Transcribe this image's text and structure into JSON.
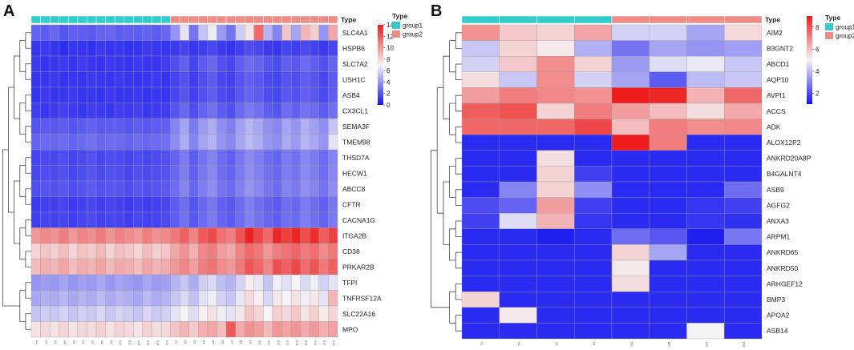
{
  "chart_data": [
    {
      "type": "heatmap",
      "panel": "A",
      "annotation_title": "Type",
      "legend": {
        "title": "Type",
        "entries": [
          {
            "label": "group1",
            "color": "#33cccc"
          },
          {
            "label": "group2",
            "color": "#f08c86"
          }
        ]
      },
      "colorbar": {
        "min": 0,
        "max": 14,
        "ticks": [
          0,
          2,
          4,
          6,
          8,
          10,
          12,
          14
        ],
        "low_color": "#1414f0",
        "mid_color": "#f5f3f5",
        "high_color": "#ee1c1c"
      },
      "n_group1": 15,
      "samples": [
        "N1",
        "N2",
        "N3",
        "N4",
        "N5",
        "N6",
        "N7",
        "N8",
        "N9",
        "N10",
        "N11",
        "N12",
        "N13",
        "N14",
        "N15",
        "D1",
        "D2",
        "D3",
        "D4",
        "D5",
        "D6",
        "D7",
        "D8",
        "D9",
        "D10",
        "D11",
        "D12",
        "D13",
        "D14",
        "D15",
        "D16",
        "D17",
        "D18"
      ],
      "genes": [
        "SLC4A1",
        "HSPB6",
        "SLC7A2",
        "USH1C",
        "ASB4",
        "CX3CL1",
        "SEMA3F",
        "TMEM98",
        "THSD7A",
        "HECW1",
        "ABCC8",
        "CFTR",
        "CACNA1G",
        "ITGA2B",
        "CD38",
        "PRKAR2B",
        "TFPI",
        "TNFRSF12A",
        "SLC22A16",
        "MPO"
      ],
      "values": [
        [
          2.5,
          2.2,
          2.6,
          2.0,
          2.4,
          2.3,
          2.1,
          2.5,
          2.6,
          2.2,
          2.4,
          2.3,
          2.5,
          2.2,
          2.6,
          4.0,
          6.5,
          3.0,
          5.5,
          6.8,
          4.2,
          3.0,
          5.8,
          7.5,
          11.5,
          5.0,
          3.5,
          8.5,
          4.5,
          9.0,
          8.2,
          4.0,
          9.5
        ],
        [
          1.0,
          1.2,
          1.0,
          0.8,
          1.1,
          1.0,
          0.9,
          1.2,
          1.0,
          1.1,
          0.9,
          1.0,
          1.2,
          1.1,
          1.0,
          1.2,
          1.5,
          1.1,
          1.3,
          1.6,
          1.2,
          1.0,
          1.4,
          1.8,
          1.6,
          1.2,
          1.1,
          1.5,
          1.3,
          1.7,
          1.4,
          1.2,
          1.6
        ],
        [
          1.2,
          1.0,
          1.1,
          1.2,
          1.0,
          1.3,
          1.1,
          1.0,
          1.2,
          1.1,
          1.0,
          1.2,
          1.1,
          1.0,
          1.3,
          1.8,
          2.4,
          1.5,
          2.2,
          2.6,
          1.9,
          1.6,
          2.3,
          2.8,
          2.5,
          2.0,
          1.7,
          2.4,
          2.1,
          2.7,
          2.3,
          1.9,
          2.5
        ],
        [
          1.0,
          1.1,
          1.2,
          1.0,
          1.1,
          1.0,
          1.2,
          1.1,
          1.0,
          1.2,
          1.1,
          1.0,
          1.1,
          1.2,
          1.0,
          1.5,
          1.9,
          1.3,
          1.8,
          2.2,
          1.6,
          1.4,
          2.0,
          2.4,
          2.1,
          1.7,
          1.5,
          2.0,
          1.8,
          2.3,
          2.0,
          1.6,
          2.2
        ],
        [
          1.0,
          1.2,
          1.0,
          1.1,
          1.2,
          1.0,
          1.1,
          1.0,
          1.2,
          1.0,
          1.1,
          1.2,
          1.0,
          1.1,
          1.0,
          1.6,
          2.0,
          1.4,
          1.9,
          2.3,
          1.7,
          1.5,
          2.1,
          2.5,
          2.2,
          1.8,
          1.6,
          2.1,
          1.9,
          2.4,
          2.1,
          1.7,
          2.3
        ],
        [
          1.3,
          1.1,
          1.2,
          1.4,
          1.2,
          1.1,
          1.3,
          1.2,
          1.1,
          1.3,
          1.2,
          1.4,
          1.1,
          1.2,
          1.3,
          2.0,
          2.6,
          1.8,
          2.5,
          2.9,
          2.2,
          1.9,
          2.7,
          3.2,
          2.9,
          2.3,
          2.0,
          2.8,
          2.4,
          3.0,
          2.7,
          2.2,
          2.9
        ],
        [
          2.0,
          2.2,
          2.1,
          2.3,
          2.0,
          2.2,
          2.4,
          2.1,
          2.3,
          2.2,
          2.0,
          2.3,
          2.1,
          2.2,
          2.4,
          3.5,
          4.5,
          3.2,
          4.2,
          4.8,
          3.8,
          3.4,
          4.4,
          5.0,
          4.6,
          3.9,
          3.6,
          4.5,
          4.0,
          4.9,
          4.4,
          3.8,
          5.5
        ],
        [
          2.5,
          2.7,
          2.6,
          2.8,
          2.5,
          2.7,
          2.9,
          2.6,
          2.8,
          2.7,
          2.5,
          2.8,
          2.6,
          2.7,
          2.9,
          3.8,
          4.8,
          3.5,
          4.5,
          5.0,
          4.0,
          3.6,
          4.6,
          5.2,
          4.8,
          4.1,
          3.8,
          4.7,
          4.2,
          5.1,
          4.6,
          4.0,
          6.5
        ],
        [
          1.5,
          1.7,
          1.6,
          1.8,
          1.5,
          1.7,
          1.9,
          1.6,
          1.8,
          1.7,
          1.5,
          1.8,
          1.6,
          1.7,
          1.9,
          2.5,
          3.2,
          2.3,
          3.0,
          3.5,
          2.7,
          2.4,
          3.1,
          3.7,
          3.3,
          2.8,
          2.5,
          3.2,
          2.9,
          3.6,
          3.2,
          2.7,
          3.5
        ],
        [
          1.6,
          1.8,
          1.7,
          1.9,
          1.6,
          1.8,
          2.0,
          1.7,
          1.9,
          1.8,
          1.6,
          1.9,
          1.7,
          1.8,
          2.0,
          2.6,
          3.3,
          2.4,
          3.1,
          3.6,
          2.8,
          2.5,
          3.2,
          3.8,
          3.4,
          2.9,
          2.6,
          3.3,
          3.0,
          3.7,
          3.3,
          2.8,
          3.6
        ],
        [
          1.8,
          2.0,
          1.9,
          2.1,
          1.8,
          2.0,
          2.2,
          1.9,
          2.1,
          2.0,
          1.8,
          2.1,
          1.9,
          2.0,
          2.2,
          2.8,
          3.5,
          2.6,
          3.3,
          3.8,
          3.0,
          2.7,
          3.4,
          4.0,
          3.6,
          3.1,
          2.8,
          3.5,
          3.2,
          3.9,
          3.5,
          3.0,
          3.8
        ],
        [
          1.2,
          1.4,
          1.3,
          1.5,
          1.2,
          1.4,
          1.6,
          1.3,
          1.5,
          1.4,
          1.2,
          1.5,
          1.3,
          1.4,
          1.6,
          2.2,
          2.8,
          2.0,
          2.6,
          3.1,
          2.4,
          2.1,
          2.7,
          3.3,
          2.9,
          2.5,
          2.2,
          2.8,
          2.6,
          3.2,
          2.8,
          2.4,
          3.1
        ],
        [
          1.3,
          1.5,
          1.4,
          1.6,
          1.3,
          1.5,
          1.7,
          1.4,
          1.6,
          1.5,
          1.3,
          1.6,
          1.4,
          1.5,
          1.7,
          2.3,
          2.9,
          2.1,
          2.7,
          3.2,
          2.5,
          2.2,
          2.8,
          3.4,
          3.0,
          2.6,
          2.3,
          2.9,
          2.7,
          3.3,
          2.9,
          2.5,
          3.2
        ],
        [
          10.0,
          10.5,
          10.2,
          10.8,
          10.0,
          10.6,
          10.3,
          10.9,
          10.1,
          10.7,
          10.4,
          10.0,
          10.8,
          10.2,
          10.5,
          11.0,
          11.8,
          10.6,
          12.0,
          12.5,
          11.3,
          10.8,
          12.2,
          13.8,
          12.6,
          11.5,
          13.6,
          12.9,
          13.7,
          12.4,
          13.5,
          11.9,
          12.8
        ],
        [
          8.0,
          8.5,
          8.2,
          8.8,
          8.0,
          8.6,
          8.3,
          8.9,
          8.1,
          8.7,
          8.4,
          8.0,
          8.8,
          8.2,
          8.5,
          9.5,
          10.2,
          9.2,
          10.5,
          10.8,
          9.8,
          9.4,
          10.6,
          11.5,
          11.0,
          10.0,
          10.8,
          11.2,
          11.6,
          10.9,
          11.3,
          10.4,
          11.0
        ],
        [
          8.8,
          9.2,
          9.0,
          9.5,
          8.8,
          9.3,
          9.1,
          9.6,
          8.9,
          9.4,
          9.2,
          8.8,
          9.5,
          9.0,
          9.3,
          10.0,
          10.6,
          9.8,
          10.8,
          11.2,
          10.4,
          10.0,
          11.0,
          12.2,
          11.6,
          10.6,
          12.4,
          11.8,
          12.6,
          11.4,
          12.2,
          11.0,
          11.8
        ],
        [
          4.0,
          4.3,
          4.1,
          4.5,
          4.0,
          4.4,
          4.2,
          4.6,
          4.1,
          4.5,
          4.3,
          4.0,
          4.6,
          4.2,
          4.4,
          5.0,
          5.6,
          4.8,
          5.8,
          6.2,
          5.3,
          5.0,
          6.0,
          7.2,
          6.6,
          5.5,
          6.8,
          6.4,
          7.0,
          6.2,
          6.8,
          5.9,
          6.5
        ],
        [
          4.6,
          4.9,
          4.7,
          5.1,
          4.6,
          5.0,
          4.8,
          5.2,
          4.7,
          5.1,
          4.9,
          4.6,
          5.2,
          4.8,
          5.0,
          5.6,
          6.2,
          5.4,
          6.4,
          6.8,
          5.9,
          5.6,
          6.6,
          7.8,
          7.2,
          6.1,
          7.4,
          7.0,
          7.6,
          6.8,
          7.4,
          6.5,
          9.0
        ],
        [
          5.5,
          5.8,
          5.6,
          6.0,
          5.5,
          5.9,
          5.7,
          6.1,
          5.6,
          6.0,
          5.8,
          5.5,
          6.1,
          5.7,
          5.9,
          6.5,
          7.0,
          6.3,
          7.2,
          7.6,
          6.8,
          6.5,
          7.4,
          8.5,
          8.0,
          7.0,
          8.2,
          7.8,
          8.4,
          7.6,
          8.2,
          7.3,
          7.9
        ],
        [
          7.5,
          7.8,
          7.6,
          8.0,
          7.5,
          7.9,
          7.7,
          8.1,
          7.6,
          8.0,
          7.8,
          7.5,
          8.1,
          7.7,
          7.9,
          8.5,
          9.0,
          8.3,
          9.2,
          9.5,
          8.8,
          12.0,
          9.4,
          10.2,
          9.8,
          8.9,
          10.0,
          9.6,
          10.1,
          9.4,
          9.9,
          9.2,
          9.7
        ]
      ]
    },
    {
      "type": "heatmap",
      "panel": "B",
      "annotation_title": "Type",
      "legend": {
        "title": "Type",
        "entries": [
          {
            "label": "group1",
            "color": "#33cccc"
          },
          {
            "label": "group2",
            "color": "#f08c86"
          }
        ]
      },
      "colorbar": {
        "min": 1,
        "max": 9,
        "ticks": [
          2,
          4,
          6,
          8
        ],
        "low_color": "#1414f0",
        "mid_color": "#f5f3f5",
        "high_color": "#ee1c1c"
      },
      "n_group1": 4,
      "samples": [
        "N1",
        "N2",
        "N3",
        "N4",
        "DF1",
        "DF2",
        "DF3",
        "DF4"
      ],
      "genes": [
        "AIM2",
        "B3GNT2",
        "ABCD1",
        "AQP10",
        "AVPI1",
        "ACCS",
        "ADK",
        "ALOX12P2",
        "ANKRD20A8P",
        "B4GALNT4",
        "ASB9",
        "AGFG2",
        "ANXA3",
        "ARPM1",
        "ANKRD65",
        "ANKRD50",
        "ARHGEF12",
        "BMP3",
        "APOA2",
        "ASB14"
      ],
      "values": [
        [
          6.8,
          5.8,
          5.6,
          6.5,
          4.4,
          4.4,
          3.6,
          5.5
        ],
        [
          4.2,
          5.6,
          5.2,
          3.8,
          2.7,
          3.6,
          3.3,
          3.5
        ],
        [
          4.4,
          5.8,
          6.9,
          5.6,
          3.4,
          4.6,
          4.8,
          4.2
        ],
        [
          5.4,
          4.2,
          6.9,
          4.4,
          3.6,
          2.3,
          4.0,
          4.2
        ],
        [
          6.6,
          7.2,
          7.0,
          6.8,
          9.0,
          8.8,
          6.2,
          7.6
        ],
        [
          7.8,
          8.0,
          5.6,
          7.2,
          6.6,
          6.0,
          5.4,
          6.4
        ],
        [
          7.6,
          7.6,
          7.6,
          8.2,
          6.0,
          7.2,
          6.9,
          7.0
        ],
        [
          1.4,
          1.4,
          1.4,
          1.4,
          9.2,
          7.2,
          1.4,
          1.4
        ],
        [
          1.4,
          1.4,
          5.4,
          1.4,
          1.4,
          1.4,
          1.4,
          1.4
        ],
        [
          1.4,
          1.4,
          5.6,
          1.8,
          1.4,
          1.4,
          1.4,
          1.4
        ],
        [
          1.4,
          3.0,
          5.6,
          3.2,
          1.4,
          1.4,
          1.4,
          2.6
        ],
        [
          2.0,
          2.4,
          6.6,
          1.8,
          1.4,
          1.4,
          1.6,
          1.8
        ],
        [
          1.8,
          4.6,
          6.2,
          1.6,
          1.4,
          1.4,
          1.6,
          1.5
        ],
        [
          1.4,
          1.4,
          1.2,
          1.4,
          2.6,
          2.2,
          1.2,
          2.8
        ],
        [
          1.4,
          1.4,
          1.4,
          1.4,
          5.6,
          3.6,
          1.4,
          1.4
        ],
        [
          1.4,
          1.4,
          1.4,
          1.4,
          5.2,
          1.4,
          1.4,
          1.4
        ],
        [
          1.4,
          1.4,
          1.4,
          1.4,
          5.4,
          1.4,
          1.4,
          1.4
        ],
        [
          5.6,
          1.4,
          1.4,
          1.4,
          1.4,
          1.4,
          1.4,
          1.4
        ],
        [
          1.4,
          5.2,
          1.4,
          1.4,
          1.4,
          1.4,
          1.4,
          1.4
        ],
        [
          1.4,
          1.4,
          1.4,
          1.4,
          1.4,
          1.4,
          5.0,
          1.4
        ]
      ]
    }
  ]
}
